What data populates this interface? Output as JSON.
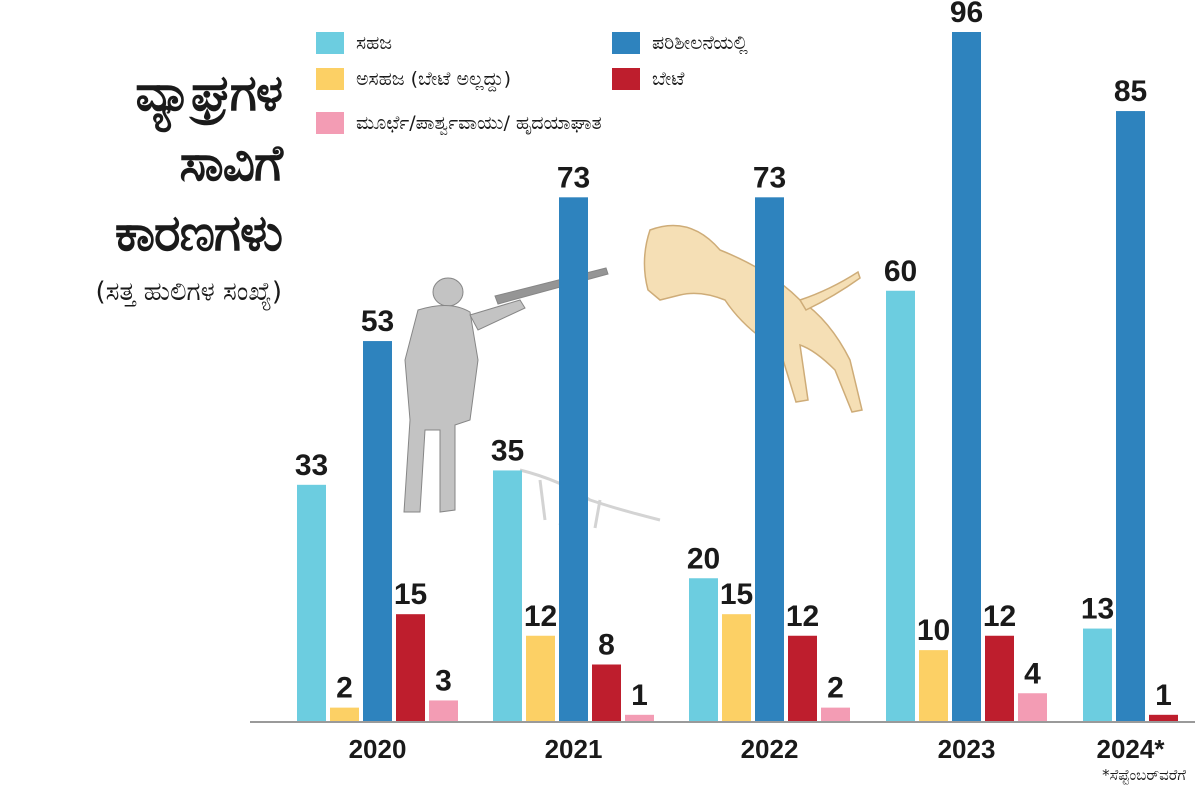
{
  "title": {
    "lines": [
      "ವ್ಯಾಘ್ರಗಳ",
      "ಸಾವಿಗೆ",
      "ಕಾರಣಗಳು"
    ],
    "subtitle": "(ಸತ್ತ ಹುಲಿಗಳ ಸಂಖ್ಯೆ)"
  },
  "footnote": "*ಸೆಪ್ಟೆಂಬರ್‌ವರೆಗೆ",
  "colors": {
    "natural": "#6ccde0",
    "unnatural": "#fcd065",
    "under_review": "#2e83be",
    "poaching": "#be1e2d",
    "stroke": "#f39cb4",
    "axis": "#9a9a9a"
  },
  "chart_data": {
    "type": "bar",
    "categories": [
      "2020",
      "2021",
      "2022",
      "2023",
      "2024*"
    ],
    "series": [
      {
        "name": "ಸಹಜ",
        "color_key": "natural",
        "values": [
          33,
          35,
          20,
          60,
          13
        ]
      },
      {
        "name": "ಅಸಹಜ (ಬೇಟೆ ಅಲ್ಲದ್ದು)",
        "color_key": "unnatural",
        "values": [
          2,
          12,
          15,
          10,
          null
        ]
      },
      {
        "name": "ಪರಿಶೀಲನೆಯಲ್ಲಿ",
        "color_key": "under_review",
        "values": [
          53,
          73,
          73,
          96,
          85
        ]
      },
      {
        "name": "ಬೇಟೆ",
        "color_key": "poaching",
        "values": [
          15,
          8,
          12,
          12,
          1
        ]
      },
      {
        "name": "ಮೂರ್ಛೆ/ಪಾರ್ಶ್ವವಾಯು/ ಹೃದಯಾಘಾತ",
        "color_key": "stroke",
        "values": [
          3,
          1,
          2,
          4,
          null
        ]
      }
    ],
    "ylim": [
      0,
      96
    ],
    "grid": false,
    "legend_position": "top"
  }
}
